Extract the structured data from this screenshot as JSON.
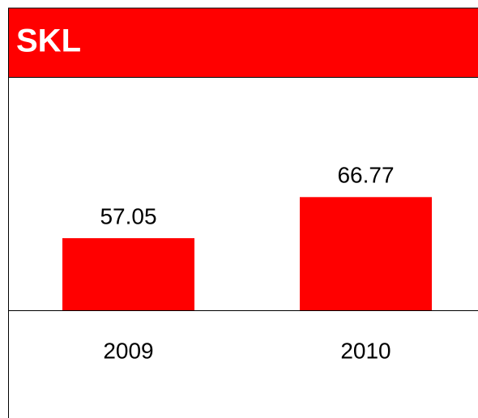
{
  "chart_data": {
    "type": "bar",
    "title": "SKL",
    "categories": [
      "2009",
      "2010"
    ],
    "values": [
      57.05,
      66.77
    ],
    "color": "#ff0000",
    "ylim": [
      40,
      95
    ]
  }
}
